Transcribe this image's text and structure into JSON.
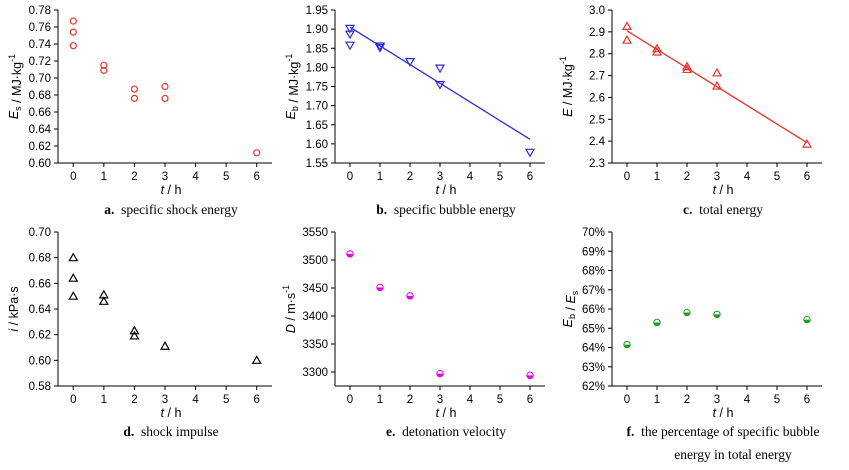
{
  "chart_data": [
    {
      "id": "a",
      "type": "scatter",
      "caption_letter": "a.",
      "caption": "specific shock energy",
      "ylabel": {
        "main": "E",
        "sub": "s",
        "rest": " / MJ·kg",
        "sup": "-1"
      },
      "xlabel": {
        "main": "t",
        "rest": " / h"
      },
      "xlim": [
        -0.5,
        6.5
      ],
      "xticks": [
        0,
        1,
        2,
        3,
        4,
        5,
        6
      ],
      "ylim": [
        0.6,
        0.78
      ],
      "yticks": [
        0.6,
        0.62,
        0.64,
        0.66,
        0.68,
        0.7,
        0.72,
        0.74,
        0.76,
        0.78
      ],
      "ydecimals": 2,
      "marker": "circle",
      "color": "#e8332f",
      "points": [
        [
          0,
          0.767
        ],
        [
          0,
          0.754
        ],
        [
          0,
          0.738
        ],
        [
          1,
          0.715
        ],
        [
          1,
          0.709
        ],
        [
          2,
          0.687
        ],
        [
          2,
          0.676
        ],
        [
          3,
          0.69
        ],
        [
          3,
          0.676
        ],
        [
          6,
          0.612
        ]
      ]
    },
    {
      "id": "b",
      "type": "scatter",
      "caption_letter": "b.",
      "caption": "specific bubble energy",
      "ylabel": {
        "main": "E",
        "sub": "b",
        "rest": " / MJ·kg",
        "sup": "-1"
      },
      "xlabel": {
        "main": "t",
        "rest": " / h"
      },
      "xlim": [
        -0.5,
        6.5
      ],
      "xticks": [
        0,
        1,
        2,
        3,
        4,
        5,
        6
      ],
      "ylim": [
        1.55,
        1.95
      ],
      "yticks": [
        1.55,
        1.6,
        1.65,
        1.7,
        1.75,
        1.8,
        1.85,
        1.9,
        1.95
      ],
      "ydecimals": 2,
      "marker": "triangle-down",
      "color": "#2b2bd6",
      "points": [
        [
          0,
          1.902
        ],
        [
          0,
          1.887
        ],
        [
          0,
          1.858
        ],
        [
          1,
          1.856
        ],
        [
          1,
          1.852
        ],
        [
          2,
          1.815
        ],
        [
          3,
          1.798
        ],
        [
          3,
          1.755
        ],
        [
          6,
          1.578
        ]
      ],
      "fit": [
        [
          0,
          1.905
        ],
        [
          6,
          1.612
        ]
      ]
    },
    {
      "id": "c",
      "type": "scatter",
      "caption_letter": "c.",
      "caption": "total energy",
      "ylabel": {
        "main": "E",
        "sub": "",
        "rest": " / MJ·kg",
        "sup": "-1"
      },
      "xlabel": {
        "main": "t",
        "rest": " / h"
      },
      "xlim": [
        -0.5,
        6.5
      ],
      "xticks": [
        0,
        1,
        2,
        3,
        4,
        5,
        6
      ],
      "ylim": [
        2.3,
        3.0
      ],
      "yticks": [
        2.3,
        2.4,
        2.5,
        2.6,
        2.7,
        2.8,
        2.9,
        3.0
      ],
      "ydecimals": 1,
      "marker": "triangle-up",
      "color": "#e8332f",
      "points": [
        [
          0,
          2.925
        ],
        [
          0,
          2.862
        ],
        [
          1,
          2.823
        ],
        [
          1,
          2.808
        ],
        [
          2,
          2.741
        ],
        [
          2,
          2.728
        ],
        [
          3,
          2.712
        ],
        [
          3,
          2.652
        ],
        [
          6,
          2.386
        ]
      ],
      "fit": [
        [
          0,
          2.905
        ],
        [
          6,
          2.393
        ]
      ]
    },
    {
      "id": "d",
      "type": "scatter",
      "caption_letter": "d.",
      "caption": "shock impulse",
      "ylabel": {
        "main": "i",
        "sub": "",
        "rest": " / kPa·s",
        "sup": ""
      },
      "xlabel": {
        "main": "t",
        "rest": " / h"
      },
      "xlim": [
        -0.5,
        6.5
      ],
      "xticks": [
        0,
        1,
        2,
        3,
        4,
        5,
        6
      ],
      "ylim": [
        0.58,
        0.7
      ],
      "yticks": [
        0.58,
        0.6,
        0.62,
        0.64,
        0.66,
        0.68,
        0.7
      ],
      "ydecimals": 2,
      "marker": "triangle-up",
      "color": "#000000",
      "points": [
        [
          0,
          0.68
        ],
        [
          0,
          0.664
        ],
        [
          0,
          0.65
        ],
        [
          1,
          0.651
        ],
        [
          1,
          0.646
        ],
        [
          2,
          0.623
        ],
        [
          2,
          0.619
        ],
        [
          3,
          0.611
        ],
        [
          6,
          0.6
        ]
      ]
    },
    {
      "id": "e",
      "type": "scatter",
      "caption_letter": "e.",
      "caption": "detonation velocity",
      "ylabel": {
        "main": "D",
        "sub": "",
        "rest": " / m·s",
        "sup": "-1"
      },
      "xlabel": {
        "main": "t",
        "rest": " / h"
      },
      "xlim": [
        -0.5,
        6.5
      ],
      "xticks": [
        0,
        1,
        2,
        3,
        4,
        5,
        6
      ],
      "ylim": [
        3275,
        3550
      ],
      "yticks": [
        3300,
        3350,
        3400,
        3450,
        3500,
        3550
      ],
      "ydecimals": 0,
      "marker": "half-circle",
      "color": "#e600e6",
      "points": [
        [
          0,
          3511
        ],
        [
          1,
          3451
        ],
        [
          2,
          3436
        ],
        [
          3,
          3297
        ],
        [
          6,
          3294
        ]
      ]
    },
    {
      "id": "f",
      "type": "scatter",
      "caption_letter": "f.",
      "caption": "the percentage of specific bubble",
      "caption2": "energy in total energy",
      "ylabel": {
        "main": "E",
        "sub": "b",
        "rest": " / E",
        "sub2": "s"
      },
      "xlabel": {
        "main": "t",
        "rest": " / h"
      },
      "xlim": [
        -0.5,
        6.5
      ],
      "xticks": [
        0,
        1,
        2,
        3,
        4,
        5,
        6
      ],
      "ylim": [
        62,
        70
      ],
      "yticks": [
        62,
        63,
        64,
        65,
        66,
        67,
        68,
        69,
        70
      ],
      "ydecimals": 0,
      "ysuffix": "%",
      "marker": "half-circle",
      "color": "#1f9e1f",
      "points": [
        [
          0,
          64.15
        ],
        [
          1,
          65.3
        ],
        [
          2,
          65.82
        ],
        [
          3,
          65.72
        ],
        [
          6,
          65.45
        ]
      ]
    }
  ]
}
